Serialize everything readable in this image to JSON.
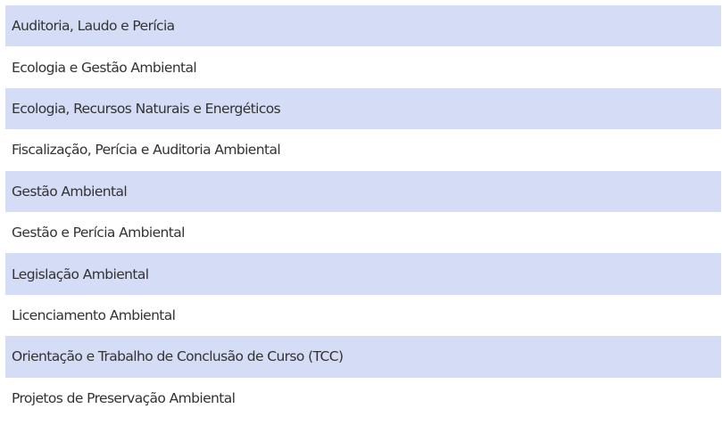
{
  "list": {
    "items": [
      "Auditoria, Laudo e Perícia",
      "Ecologia e Gestão Ambiental",
      "Ecologia, Recursos Naturais e Energéticos",
      "Fiscalização, Perícia e Auditoria Ambiental",
      "Gestão Ambiental",
      "Gestão e Perícia Ambiental",
      "Legislação Ambiental",
      "Licenciamento Ambiental",
      "Orientação e Trabalho de Conclusão de Curso (TCC)",
      "Projetos de Preservação Ambiental"
    ]
  },
  "colors": {
    "odd_row": "#d5dcf5",
    "even_row": "#ffffff",
    "text": "#333333"
  }
}
